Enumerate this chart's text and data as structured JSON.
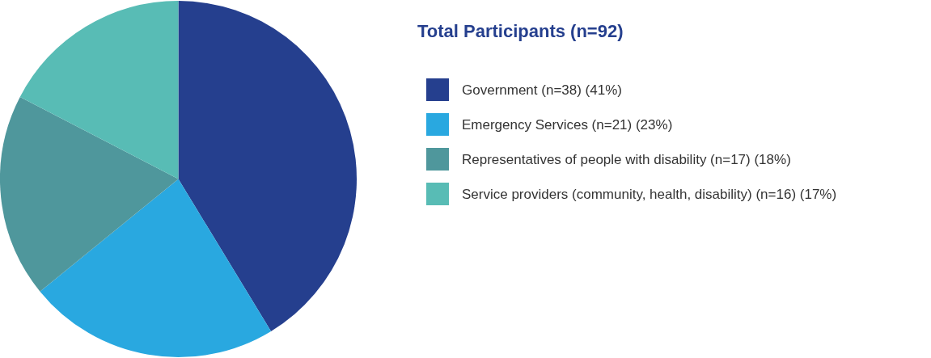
{
  "chart_data": {
    "type": "pie",
    "title": "Total Participants (n=92)",
    "categories": [
      "Government (n=38) (41%)",
      "Emergency Services (n=21) (23%)",
      "Representatives of people with disability (n=17) (18%)",
      "Service providers (community, health, disability) (n=16) (17%)"
    ],
    "values": [
      38,
      21,
      17,
      16
    ],
    "colors": [
      "#253f8e",
      "#29a8e0",
      "#4f979c",
      "#58bcb5"
    ],
    "legend": "right"
  }
}
